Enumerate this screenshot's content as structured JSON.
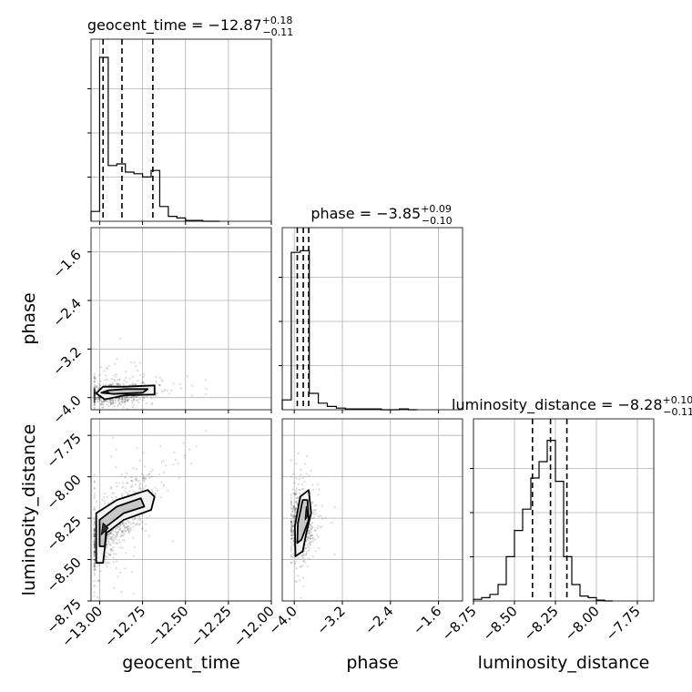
{
  "chart_data": {
    "type": "corner",
    "parameters": [
      {
        "name": "geocent_time",
        "title": {
          "prefix": "geocent_time = ",
          "median": "−12.87",
          "plus": "+0.18",
          "minus": "−0.11"
        },
        "range": [
          -13.05,
          -12.0
        ],
        "ticks": [
          -13.0,
          -12.75,
          -12.5,
          -12.25,
          -12.0
        ],
        "tick_labels": [
          "−13.00",
          "−12.75",
          "−12.50",
          "−12.25",
          "−12.00"
        ],
        "quantiles": [
          -12.98,
          -12.87,
          -12.69
        ],
        "histogram": {
          "edges": [
            -13.05,
            -13.0,
            -12.95,
            -12.9,
            -12.85,
            -12.8,
            -12.75,
            -12.7,
            -12.65,
            -12.6,
            -12.55,
            -12.5,
            -12.45,
            -12.4,
            -12.35,
            -12.3
          ],
          "counts": [
            0.06,
            1.0,
            0.34,
            0.35,
            0.3,
            0.29,
            0.27,
            0.31,
            0.09,
            0.03,
            0.02,
            0.005,
            0.005,
            0,
            0
          ]
        }
      },
      {
        "name": "phase",
        "title": {
          "prefix": "phase = ",
          "median": "−3.85",
          "plus": "+0.09",
          "minus": "−0.10"
        },
        "range": [
          -4.2,
          -1.2
        ],
        "ticks": [
          -4.0,
          -3.2,
          -2.4,
          -1.6
        ],
        "tick_labels": [
          "−4.0",
          "−3.2",
          "−2.4",
          "−1.6"
        ],
        "quantiles": [
          -3.95,
          -3.85,
          -3.76
        ],
        "histogram": {
          "edges": [
            -4.2,
            -4.05,
            -3.9,
            -3.75,
            -3.6,
            -3.45,
            -3.3,
            -3.15,
            -3.0,
            -2.85,
            -2.7,
            -2.55,
            -2.4,
            -2.25,
            -2.1,
            -1.95
          ],
          "counts": [
            0.06,
            0.96,
            0.97,
            0.1,
            0.04,
            0.02,
            0.01,
            0.005,
            0.005,
            0.005,
            0.005,
            0,
            0,
            0.005,
            0
          ]
        }
      },
      {
        "name": "luminosity_distance",
        "title": {
          "prefix": "luminosity_distance = ",
          "median": "−8.28",
          "plus": "+0.10",
          "minus": "−0.11"
        },
        "range": [
          -8.75,
          -7.65
        ],
        "ticks": [
          -8.75,
          -8.5,
          -8.25,
          -8.0,
          -7.75
        ],
        "tick_labels": [
          "−8.75",
          "−8.50",
          "−8.25",
          "−8.00",
          "−7.75"
        ],
        "quantiles": [
          -8.39,
          -8.28,
          -8.18
        ],
        "histogram": {
          "edges": [
            -8.75,
            -8.7,
            -8.65,
            -8.6,
            -8.55,
            -8.5,
            -8.45,
            -8.4,
            -8.35,
            -8.3,
            -8.25,
            -8.2,
            -8.15,
            -8.1,
            -8.05,
            -8.0,
            -7.95,
            -7.9
          ],
          "counts": [
            0.01,
            0.02,
            0.04,
            0.1,
            0.27,
            0.43,
            0.56,
            0.75,
            0.85,
            0.98,
            0.73,
            0.27,
            0.1,
            0.03,
            0.02,
            0.005,
            0
          ]
        }
      }
    ],
    "pairs": [
      {
        "x": 0,
        "y": 1,
        "center": [
          -12.91,
          -3.93
        ],
        "spread": [
          0.1,
          0.09
        ],
        "contours": [
          [
            [
              -13.02,
              -3.93
            ],
            [
              -12.98,
              -3.82
            ],
            [
              -12.85,
              -3.82
            ],
            [
              -12.68,
              -3.8
            ],
            [
              -12.68,
              -3.95
            ],
            [
              -12.85,
              -3.96
            ],
            [
              -12.97,
              -4.03
            ]
          ],
          [
            [
              -12.99,
              -3.92
            ],
            [
              -12.95,
              -3.88
            ],
            [
              -12.85,
              -3.86
            ],
            [
              -12.72,
              -3.86
            ],
            [
              -12.75,
              -3.92
            ],
            [
              -12.92,
              -3.94
            ]
          ],
          [
            [
              -12.98,
              -3.92
            ],
            [
              -12.96,
              -3.89
            ],
            [
              -12.94,
              -3.93
            ]
          ]
        ]
      },
      {
        "x": 0,
        "y": 2,
        "center": [
          -12.9,
          -8.28
        ],
        "spread": [
          0.1,
          0.09
        ],
        "contours": [
          [
            [
              -13.02,
              -8.52
            ],
            [
              -13.02,
              -8.22
            ],
            [
              -12.9,
              -8.14
            ],
            [
              -12.72,
              -8.08
            ],
            [
              -12.68,
              -8.12
            ],
            [
              -12.7,
              -8.2
            ],
            [
              -12.86,
              -8.26
            ],
            [
              -12.96,
              -8.34
            ],
            [
              -12.98,
              -8.52
            ]
          ],
          [
            [
              -13.0,
              -8.42
            ],
            [
              -13.0,
              -8.26
            ],
            [
              -12.9,
              -8.18
            ],
            [
              -12.76,
              -8.13
            ],
            [
              -12.74,
              -8.18
            ],
            [
              -12.86,
              -8.22
            ],
            [
              -12.96,
              -8.3
            ],
            [
              -12.97,
              -8.42
            ]
          ],
          [
            [
              -12.99,
              -8.35
            ],
            [
              -12.98,
              -8.28
            ],
            [
              -12.95,
              -8.31
            ]
          ]
        ]
      },
      {
        "x": 1,
        "y": 2,
        "center": [
          -3.88,
          -8.28
        ],
        "spread": [
          0.09,
          0.09
        ],
        "contours": [
          [
            [
              -3.98,
              -8.48
            ],
            [
              -3.99,
              -8.3
            ],
            [
              -3.9,
              -8.12
            ],
            [
              -3.76,
              -8.08
            ],
            [
              -3.72,
              -8.22
            ],
            [
              -3.8,
              -8.34
            ],
            [
              -3.86,
              -8.45
            ]
          ],
          [
            [
              -3.95,
              -8.4
            ],
            [
              -3.94,
              -8.28
            ],
            [
              -3.86,
              -8.14
            ],
            [
              -3.78,
              -8.14
            ],
            [
              -3.76,
              -8.26
            ],
            [
              -3.88,
              -8.38
            ]
          ],
          [
            [
              -3.82,
              -8.26
            ],
            [
              -3.8,
              -8.18
            ],
            [
              -3.78,
              -8.24
            ]
          ]
        ]
      }
    ],
    "grid": true
  }
}
